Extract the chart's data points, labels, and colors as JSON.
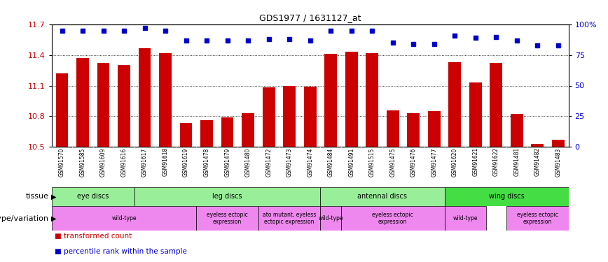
{
  "title": "GDS1977 / 1631127_at",
  "samples": [
    "GSM91570",
    "GSM91585",
    "GSM91609",
    "GSM91616",
    "GSM91617",
    "GSM91618",
    "GSM91619",
    "GSM91478",
    "GSM91479",
    "GSM91480",
    "GSM91472",
    "GSM91473",
    "GSM91474",
    "GSM91484",
    "GSM91491",
    "GSM91515",
    "GSM91475",
    "GSM91476",
    "GSM91477",
    "GSM91620",
    "GSM91621",
    "GSM91622",
    "GSM91481",
    "GSM91482",
    "GSM91483"
  ],
  "bar_values": [
    11.22,
    11.37,
    11.32,
    11.3,
    11.47,
    11.42,
    10.73,
    10.76,
    10.79,
    10.83,
    11.08,
    11.1,
    11.09,
    11.41,
    11.43,
    11.42,
    10.86,
    10.83,
    10.85,
    11.33,
    11.13,
    11.32,
    10.82,
    10.53,
    10.57
  ],
  "percentile_values": [
    95,
    95,
    95,
    95,
    97,
    95,
    87,
    87,
    87,
    87,
    88,
    88,
    87,
    95,
    95,
    95,
    85,
    84,
    84,
    91,
    89,
    90,
    87,
    83,
    83
  ],
  "bar_color": "#cc0000",
  "percentile_color": "#0000cc",
  "ymin": 10.5,
  "ymax": 11.7,
  "yticks": [
    10.5,
    10.8,
    11.1,
    11.4,
    11.7
  ],
  "right_ytick_labels": [
    "0",
    "25",
    "50",
    "75",
    "100%"
  ],
  "grid_lines": [
    10.8,
    11.1,
    11.4
  ],
  "tissue_groups": [
    {
      "label": "eye discs",
      "start": 0,
      "end": 3,
      "color": "#99ee99"
    },
    {
      "label": "leg discs",
      "start": 4,
      "end": 12,
      "color": "#99ee99"
    },
    {
      "label": "antennal discs",
      "start": 13,
      "end": 18,
      "color": "#99ee99"
    },
    {
      "label": "wing discs",
      "start": 19,
      "end": 24,
      "color": "#44dd44"
    }
  ],
  "geno_groups": [
    {
      "label": "wild-type",
      "start": 0,
      "end": 6
    },
    {
      "label": "eyeless ectopic\nexpression",
      "start": 7,
      "end": 9
    },
    {
      "label": "ato mutant, eyeless\nectopic expression",
      "start": 10,
      "end": 12
    },
    {
      "label": "wild-type",
      "start": 13,
      "end": 13
    },
    {
      "label": "eyeless ectopic\nexpression",
      "start": 14,
      "end": 18
    },
    {
      "label": "wild-type",
      "start": 19,
      "end": 20
    },
    {
      "label": "eyeless ectopic\nexpression",
      "start": 22,
      "end": 24
    }
  ],
  "geno_color": "#ee88ee",
  "xticklabel_bg": "#dddddd"
}
